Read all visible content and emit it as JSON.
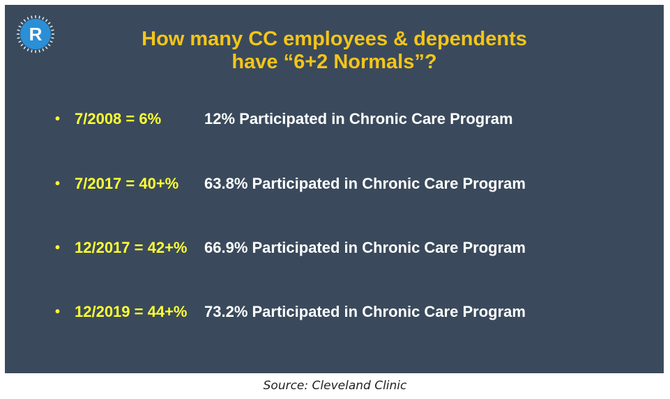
{
  "slide": {
    "logo_letter": "R",
    "title_line1": "How many CC employees & dependents",
    "title_line2": "have “6+2 Normals”?",
    "bullets": [
      {
        "date": "7/2008 = 6%",
        "desc": "12% Participated in Chronic Care Program"
      },
      {
        "date": "7/2017 = 40+%",
        "desc": "63.8% Participated in Chronic Care Program"
      },
      {
        "date": "12/2017 = 42+%",
        "desc": "66.9% Participated in Chronic Care Program"
      },
      {
        "date": "12/2019 = 44+%",
        "desc": "73.2% Participated in Chronic Care Program"
      }
    ]
  },
  "caption": "Source: Cleveland Clinic",
  "colors": {
    "background": "#3a4a5c",
    "title": "#f5c518",
    "date": "#ffff33",
    "text": "#ffffff",
    "logo": "#2a8fd6"
  }
}
